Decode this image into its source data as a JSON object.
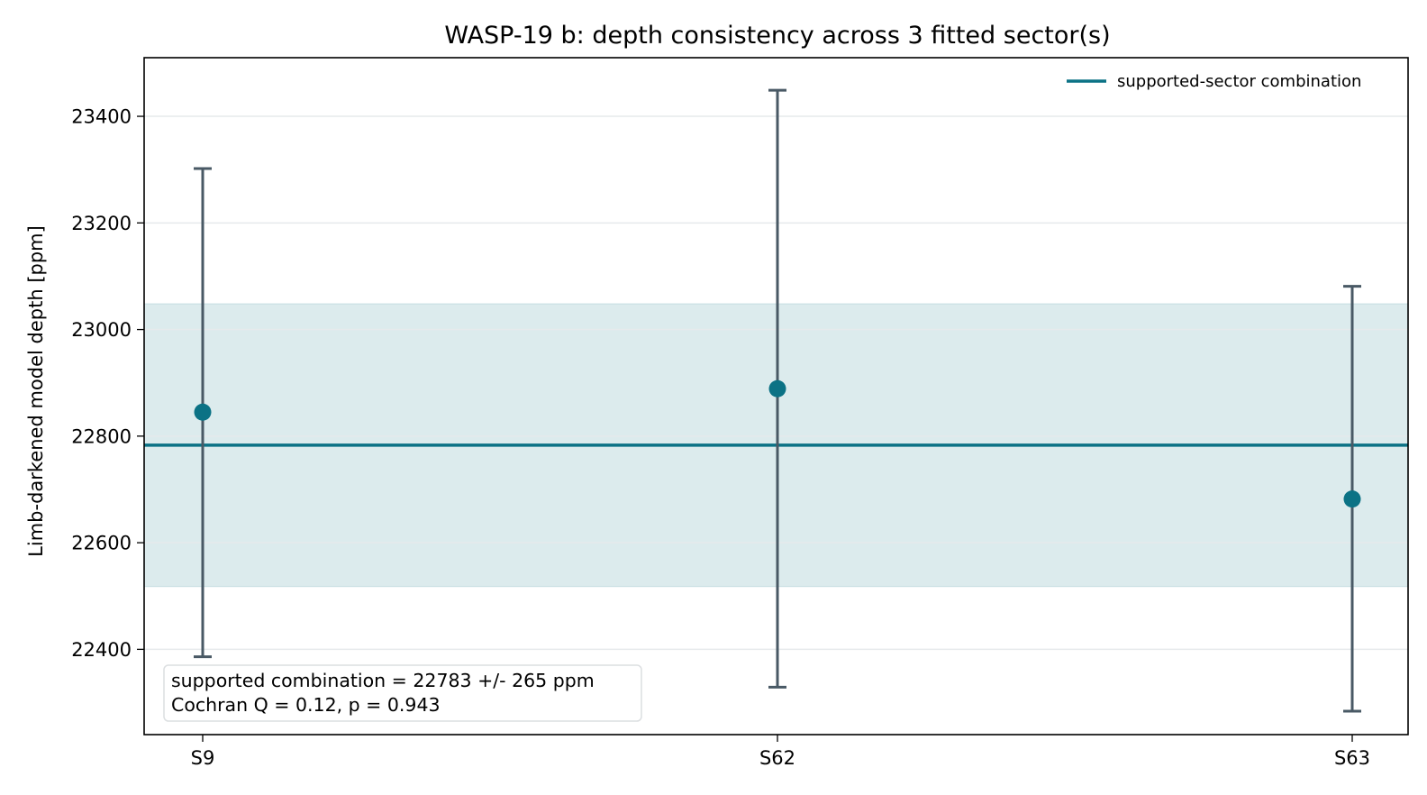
{
  "chart_data": {
    "type": "scatter",
    "title": "WASP-19 b: depth consistency across 3 fitted sector(s)",
    "xlabel": "",
    "ylabel": "Limb-darkened model depth [ppm]",
    "categories": [
      "S9",
      "S62",
      "S63"
    ],
    "values": [
      22845,
      22889,
      22682
    ],
    "err_low": [
      22386,
      22329,
      22284
    ],
    "err_high": [
      23302,
      23449,
      23081
    ],
    "combination": {
      "label": "supported-sector combination",
      "value": 22783,
      "uncertainty": 265
    },
    "ylim": [
      22240,
      23510
    ],
    "yticks": [
      22400,
      22600,
      22800,
      23000,
      23200,
      23400
    ],
    "grid": "horizontal",
    "legend_position": "top-right",
    "annotation_lines": [
      "supported combination = 22783 +/- 265 ppm",
      "Cochran Q = 0.12, p = 0.943"
    ],
    "colors": {
      "point": "#0b7285",
      "combination_line": "#0b7285",
      "band_fill": "#dcebed",
      "errorbar": "#495965",
      "grid": "#e6eaec"
    }
  }
}
